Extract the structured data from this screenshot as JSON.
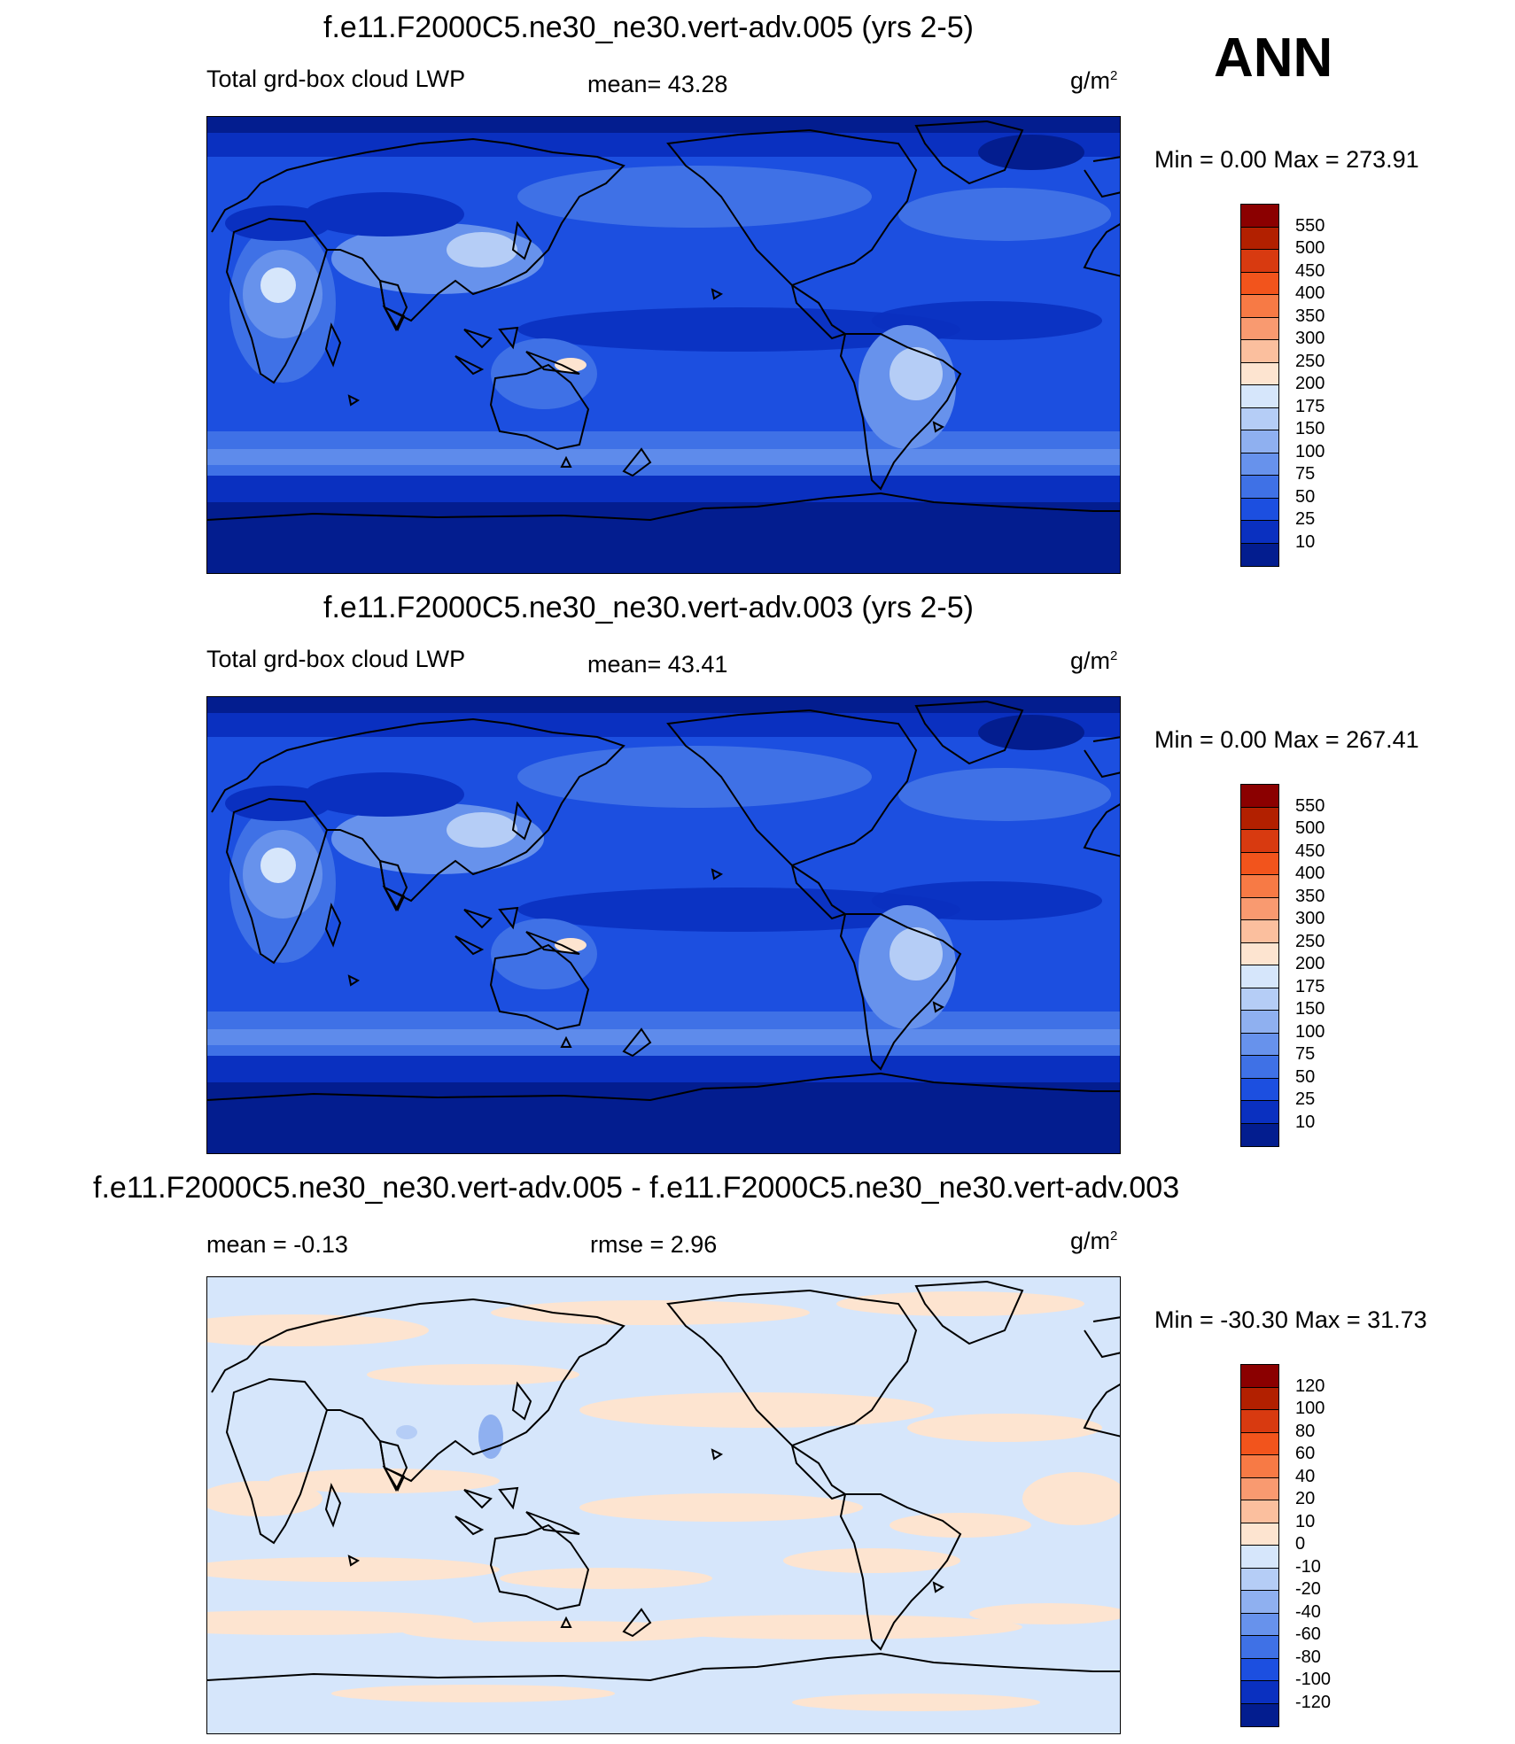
{
  "header": {
    "season": "ANN"
  },
  "panels": [
    {
      "title": "f.e11.F2000C5.ne30_ne30.vert-adv.005 (yrs 2-5)",
      "left_label": "Total grd-box cloud LWP",
      "center_label": "mean=  43.28",
      "unit_base": "g/m",
      "unit_exp": "2",
      "minmax": "Min =    0.00 Max = 273.91",
      "scheme": "abs",
      "colorbar_labels": [
        "550",
        "500",
        "450",
        "400",
        "350",
        "300",
        "250",
        "200",
        "175",
        "150",
        "100",
        "75",
        "50",
        "25",
        "10"
      ],
      "colorbar_colors": [
        "#8b0000",
        "#b22000",
        "#d83a10",
        "#f2541c",
        "#f77a45",
        "#f99a70",
        "#fbbf9e",
        "#fde4d0",
        "#d6e6fb",
        "#b5cdf6",
        "#8fb0f0",
        "#6792ec",
        "#3f71e6",
        "#1c4fe0",
        "#0a30c0",
        "#031d8f"
      ]
    },
    {
      "title": "f.e11.F2000C5.ne30_ne30.vert-adv.003 (yrs 2-5)",
      "left_label": "Total grd-box cloud LWP",
      "center_label": "mean=  43.41",
      "unit_base": "g/m",
      "unit_exp": "2",
      "minmax": "Min =    0.00 Max = 267.41",
      "scheme": "abs",
      "colorbar_labels": [
        "550",
        "500",
        "450",
        "400",
        "350",
        "300",
        "250",
        "200",
        "175",
        "150",
        "100",
        "75",
        "50",
        "25",
        "10"
      ],
      "colorbar_colors": [
        "#8b0000",
        "#b22000",
        "#d83a10",
        "#f2541c",
        "#f77a45",
        "#f99a70",
        "#fbbf9e",
        "#fde4d0",
        "#d6e6fb",
        "#b5cdf6",
        "#8fb0f0",
        "#6792ec",
        "#3f71e6",
        "#1c4fe0",
        "#0a30c0",
        "#031d8f"
      ]
    },
    {
      "title": "f.e11.F2000C5.ne30_ne30.vert-adv.005 - f.e11.F2000C5.ne30_ne30.vert-adv.003",
      "left_label": "mean =  -0.13",
      "center_label": "rmse =   2.96",
      "unit_base": "g/m",
      "unit_exp": "2",
      "minmax": "Min = -30.30 Max =  31.73",
      "scheme": "diff",
      "colorbar_labels": [
        "120",
        "100",
        "80",
        "60",
        "40",
        "20",
        "10",
        "0",
        "-10",
        "-20",
        "-40",
        "-60",
        "-80",
        "-100",
        "-120"
      ],
      "colorbar_colors": [
        "#8b0000",
        "#b22000",
        "#d83a10",
        "#f2541c",
        "#f77a45",
        "#f99a70",
        "#fbbf9e",
        "#fde4d0",
        "#d6e6fb",
        "#b5cdf6",
        "#8fb0f0",
        "#6792ec",
        "#3f71e6",
        "#1c4fe0",
        "#0a30c0",
        "#031d8f"
      ]
    }
  ]
}
